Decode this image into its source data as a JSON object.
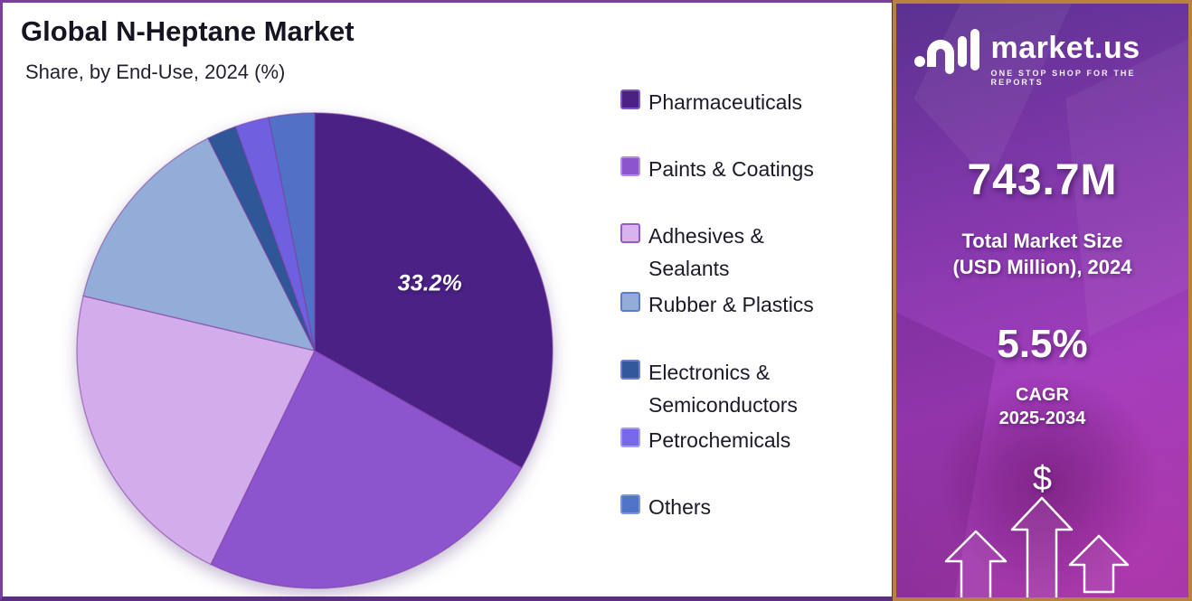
{
  "header": {
    "title": "Global N-Heptane Market",
    "subtitle": "Share, by  End-Use, 2024 (%)"
  },
  "chart_data": {
    "type": "pie",
    "title": "Global N-Heptane Market",
    "subtitle": "Share, by  End-Use, 2024 (%)",
    "unit": "%",
    "categories": [
      "Pharmaceuticals",
      "Paints & Coatings",
      "Adhesives & Sealants",
      "Rubber & Plastics",
      "Electronics & Semiconductors",
      "Petrochemicals",
      "Others"
    ],
    "values": [
      33.2,
      24.0,
      21.5,
      13.9,
      2.0,
      2.3,
      3.1
    ],
    "colors": [
      "#4a2185",
      "#8c55cd",
      "#d3aceb",
      "#94acd8",
      "#2f5696",
      "#6e60de",
      "#5071c5"
    ],
    "start_angle_deg": 0,
    "direction": "clockwise",
    "data_label": {
      "text": "33.2%",
      "slice_index": 0
    },
    "legend_position": "right"
  },
  "legend": {
    "items": [
      {
        "lines": [
          "Pharmaceuticals"
        ],
        "color": "#4a2185",
        "border": "#7e57c2"
      },
      {
        "lines": [
          "Paints & Coatings"
        ],
        "color": "#8c55cd",
        "border": "#b48ae6"
      },
      {
        "lines": [
          "Adhesives &",
          "Sealants"
        ],
        "color": "#d9b3ee",
        "border": "#9b59c8"
      },
      {
        "lines": [
          "Rubber & Plastics"
        ],
        "color": "#94acd8",
        "border": "#5b7fc7"
      },
      {
        "lines": [
          "Electronics &",
          "Semiconductors"
        ],
        "color": "#33589b",
        "border": "#6b7fd0"
      },
      {
        "lines": [
          "Petrochemicals"
        ],
        "color": "#7668e8",
        "border": "#a49af2"
      },
      {
        "lines": [
          "Others"
        ],
        "color": "#4e73c8",
        "border": "#7a95dd"
      }
    ]
  },
  "sidebar": {
    "logo": {
      "brand": "market.us",
      "tagline": "ONE STOP SHOP FOR THE REPORTS"
    },
    "market_size_value": "743.7M",
    "market_size_label_line1": "Total Market Size",
    "market_size_label_line2": "(USD Million), 2024",
    "cagr_value": "5.5%",
    "cagr_label_line1": "CAGR",
    "cagr_label_line2": "2025-2034",
    "dollar_symbol": "$"
  },
  "style_colors": {
    "panel_border_gold": "#b8813e",
    "outer_border_purple": "#7b3fa0",
    "bottom_border_purple": "#5b2d84",
    "label_text": "#1c1a29"
  }
}
